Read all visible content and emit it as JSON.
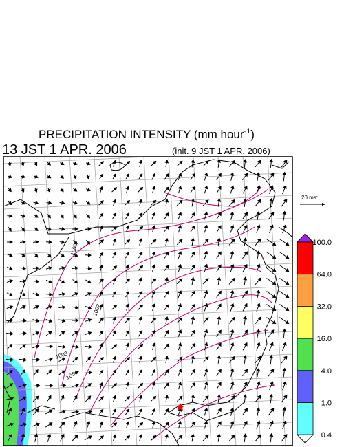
{
  "header": {
    "title": "PRECIPITATION INTENSITY (mm hour",
    "title_exponent": "-1",
    "title_end": ")",
    "time": "13 JST 1 APR. 2006",
    "init": "(init. 9 JST 1 APR. 2006)"
  },
  "vector_scale": {
    "label": "20 ms",
    "exponent": "-1"
  },
  "isobar_labels": [
    "1000",
    "1002",
    "1003",
    "1004"
  ],
  "colorbar": {
    "top_color": "#a020f0",
    "bottom_color": "#ffffff",
    "levels": [
      {
        "label": "100.0",
        "color": "#ff0000"
      },
      {
        "label": "64.0",
        "color": "#ffa040"
      },
      {
        "label": "32.0",
        "color": "#ffff60"
      },
      {
        "label": "16.0",
        "color": "#50e050"
      },
      {
        "label": "4.0",
        "color": "#6060ff"
      },
      {
        "label": "1.0",
        "color": "#60ffff"
      },
      {
        "label": "0.4",
        "color": null
      }
    ]
  }
}
